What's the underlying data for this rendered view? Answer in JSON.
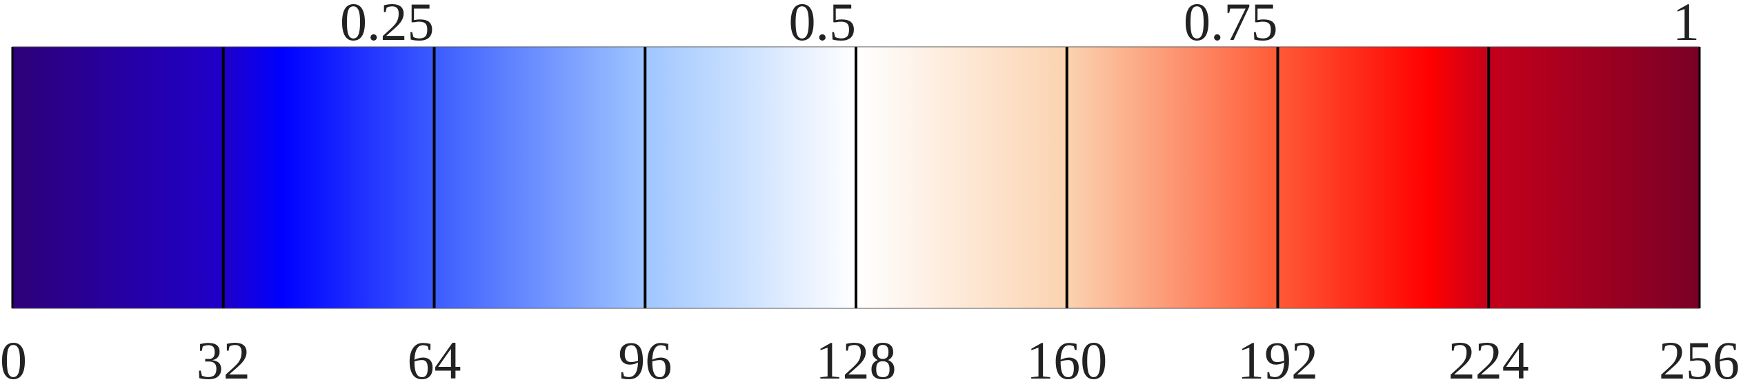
{
  "colormap": {
    "stops": [
      {
        "index": 0,
        "color": "#2e0078"
      },
      {
        "index": 32,
        "color": "#1f00c9"
      },
      {
        "index": 64,
        "color": "#0000ff"
      },
      {
        "index": 96,
        "color": "#3b5cff"
      },
      {
        "index": 128,
        "color": "#9fc6ff"
      },
      {
        "index": 160,
        "color": "#ffffff"
      },
      {
        "index": 192,
        "color": "#fbd3b0"
      },
      {
        "index": 224,
        "color": "#ff4a30"
      },
      {
        "index": 256,
        "color": "#ff0000"
      }
    ],
    "end_stop": {
      "index": 256,
      "color": "#7a0026"
    },
    "gradient_stops": [
      {
        "offset": 0.0,
        "color": "#2e0078"
      },
      {
        "offset": 0.125,
        "color": "#1f00c9"
      },
      {
        "offset": 0.16,
        "color": "#0000ff"
      },
      {
        "offset": 0.25,
        "color": "#3b5cff"
      },
      {
        "offset": 0.375,
        "color": "#9fc6ff"
      },
      {
        "offset": 0.5,
        "color": "#ffffff"
      },
      {
        "offset": 0.625,
        "color": "#fbd3b0"
      },
      {
        "offset": 0.75,
        "color": "#ff5a36"
      },
      {
        "offset": 0.84,
        "color": "#ff0000"
      },
      {
        "offset": 0.875,
        "color": "#c4001b"
      },
      {
        "offset": 1.0,
        "color": "#7a0026"
      }
    ]
  },
  "bottom_axis": {
    "min": 0,
    "max": 256,
    "ticks": [
      0,
      32,
      64,
      96,
      128,
      160,
      192,
      224,
      256
    ],
    "labels": [
      "0",
      "32",
      "64",
      "96",
      "128",
      "160",
      "192",
      "224",
      "256"
    ]
  },
  "top_axis": {
    "min": 0,
    "max": 1,
    "ticks": [
      0.25,
      0.5,
      0.75,
      1
    ],
    "labels": [
      "0.25",
      "0.5",
      "0.75",
      "1"
    ]
  },
  "divider_color": "#000000",
  "label_color": "#222222"
}
